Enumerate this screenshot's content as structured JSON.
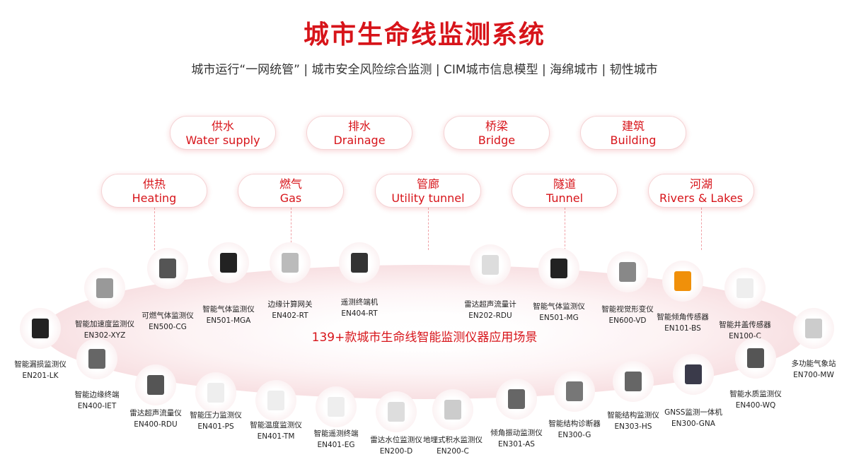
{
  "title": "城市生命线监测系统",
  "subtitle": "城市运行“一网统管” | 城市安全风险综合监测 | CIM城市信息模型 | 海绵城市 | 韧性城市",
  "categories_row1": [
    {
      "cn": "供水",
      "en": "Water supply"
    },
    {
      "cn": "排水",
      "en": "Drainage"
    },
    {
      "cn": "桥梁",
      "en": "Bridge"
    },
    {
      "cn": "建筑",
      "en": "Building"
    }
  ],
  "categories_row2": [
    {
      "cn": "供热",
      "en": "Heating"
    },
    {
      "cn": "燃气",
      "en": "Gas"
    },
    {
      "cn": "管廊",
      "en": "Utility tunnel"
    },
    {
      "cn": "隧道",
      "en": "Tunnel"
    },
    {
      "cn": "河湖",
      "en": "Rivers & Lakes"
    }
  ],
  "center_text": "139+款城市生命线智能监测仪器应用场景",
  "accent_color": "#d7141a",
  "products": [
    {
      "name": "智能漏损监测仪",
      "model": "EN201-LK",
      "color": "#222"
    },
    {
      "name": "智能加速度监测仪",
      "model": "EN302-XYZ",
      "color": "#999"
    },
    {
      "name": "可燃气体监测仪",
      "model": "EN500-CG",
      "color": "#555"
    },
    {
      "name": "智能气体监测仪",
      "model": "EN501-MGA",
      "color": "#222"
    },
    {
      "name": "边缘计算网关",
      "model": "EN402-RT",
      "color": "#bbb"
    },
    {
      "name": "遥测终端机",
      "model": "EN404-RT",
      "color": "#333"
    },
    {
      "name": "雷达超声流量计",
      "model": "EN202-RDU",
      "color": "#ddd"
    },
    {
      "name": "智能气体监测仪",
      "model": "EN501-MG",
      "color": "#222"
    },
    {
      "name": "智能视觉形变仪",
      "model": "EN600-VD",
      "color": "#888"
    },
    {
      "name": "智能倾角传感器",
      "model": "EN101-BS",
      "color": "#f0900a"
    },
    {
      "name": "智能井盖传感器",
      "model": "EN100-C",
      "color": "#eee"
    },
    {
      "name": "多功能气象站",
      "model": "EN700-MW",
      "color": "#ccc"
    },
    {
      "name": "智能边缘终端",
      "model": "EN400-IET",
      "color": "#666"
    },
    {
      "name": "雷达超声流量仪",
      "model": "EN400-RDU",
      "color": "#555"
    },
    {
      "name": "智能压力监测仪",
      "model": "EN401-PS",
      "color": "#eee"
    },
    {
      "name": "智能温度监测仪",
      "model": "EN401-TM",
      "color": "#eee"
    },
    {
      "name": "智能遥测终端",
      "model": "EN401-EG",
      "color": "#eee"
    },
    {
      "name": "雷达水位监测仪",
      "model": "EN200-D",
      "color": "#ddd"
    },
    {
      "name": "地埋式积水监测仪",
      "model": "EN200-C",
      "color": "#ccc"
    },
    {
      "name": "倾角振动监测仪",
      "model": "EN301-AS",
      "color": "#666"
    },
    {
      "name": "智能结构诊断器",
      "model": "EN300-G",
      "color": "#777"
    },
    {
      "name": "智能结构监测仪",
      "model": "EN303-HS",
      "color": "#666"
    },
    {
      "name": "GNSS监测一体机",
      "model": "EN300-GNA",
      "color": "#3a3a4a"
    },
    {
      "name": "智能水质监测仪",
      "model": "EN400-WQ",
      "color": "#555"
    }
  ]
}
